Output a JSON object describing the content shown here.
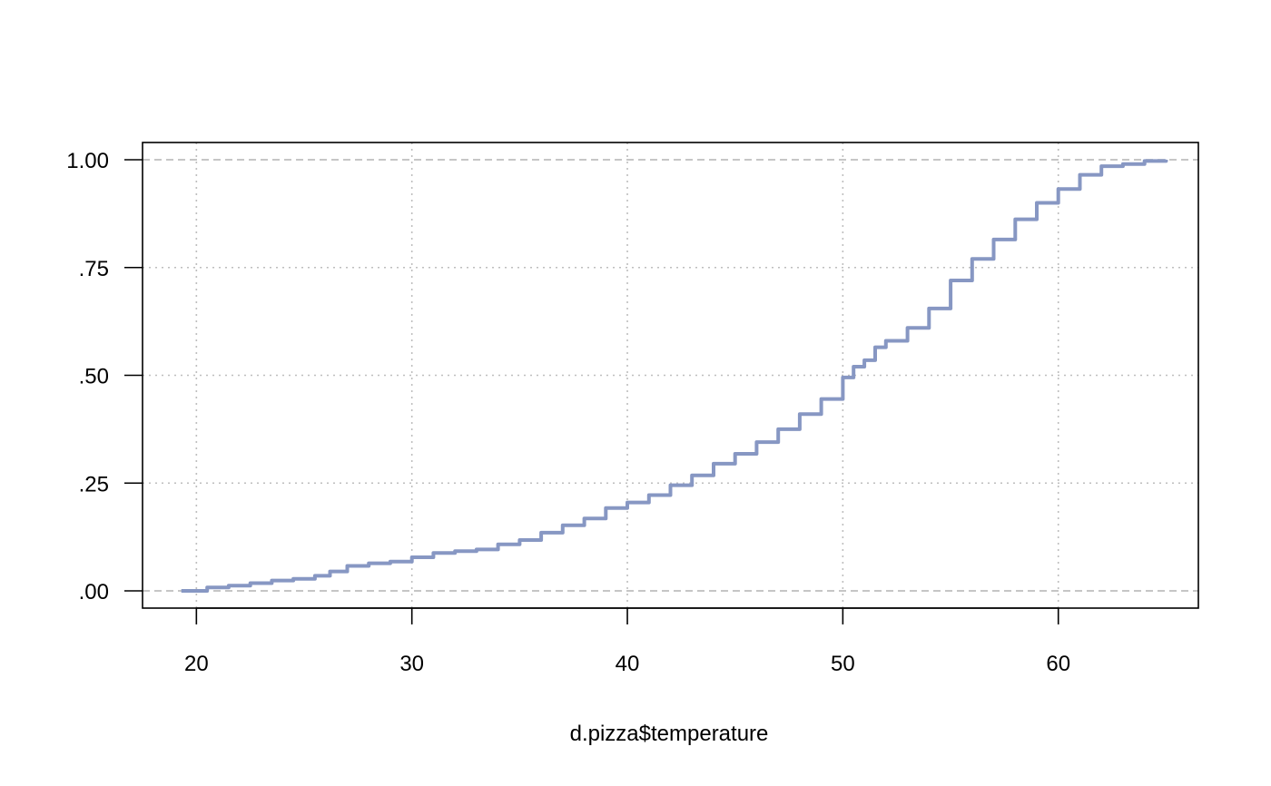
{
  "chart_data": {
    "type": "line",
    "title": "",
    "xlabel": "d.pizza$temperature",
    "ylabel": "",
    "xlim": [
      17.5,
      66.5
    ],
    "ylim": [
      -0.04,
      1.04
    ],
    "x_ticks": [
      20,
      30,
      40,
      50,
      60
    ],
    "x_tick_labels": [
      "20",
      "30",
      "40",
      "50",
      "60"
    ],
    "y_ticks": [
      0,
      0.25,
      0.5,
      0.75,
      1.0
    ],
    "y_tick_labels": [
      ".00",
      ".25",
      ".50",
      ".75",
      "1.00"
    ],
    "grid": true,
    "reference_lines": [
      0,
      1
    ],
    "line_color": "#8797C3",
    "grid_color": "#BEBEBE",
    "series": [
      {
        "values_x": [
          19.3,
          20.5,
          21.5,
          22.5,
          23.5,
          24.5,
          25.5,
          26.2,
          27.0,
          28.0,
          29.0,
          30.0,
          31.0,
          32.0,
          33.0,
          34.0,
          35.0,
          36.0,
          37.0,
          38.0,
          39.0,
          40.0,
          41.0,
          42.0,
          43.0,
          44.0,
          45.0,
          46.0,
          47.0,
          48.0,
          49.0,
          50.0,
          50.5,
          51.0,
          51.5,
          52.0,
          53.0,
          54.0,
          55.0,
          56.0,
          57.0,
          58.0,
          59.0,
          60.0,
          61.0,
          62.0,
          63.0,
          64.0,
          65.0
        ],
        "values_y": [
          0.0,
          0.008,
          0.012,
          0.018,
          0.024,
          0.028,
          0.035,
          0.045,
          0.058,
          0.064,
          0.068,
          0.078,
          0.088,
          0.092,
          0.096,
          0.108,
          0.118,
          0.135,
          0.152,
          0.168,
          0.192,
          0.205,
          0.222,
          0.245,
          0.268,
          0.295,
          0.318,
          0.345,
          0.375,
          0.41,
          0.445,
          0.495,
          0.52,
          0.535,
          0.565,
          0.58,
          0.61,
          0.655,
          0.72,
          0.77,
          0.815,
          0.862,
          0.9,
          0.932,
          0.965,
          0.985,
          0.99,
          0.997,
          1.0
        ]
      }
    ]
  }
}
